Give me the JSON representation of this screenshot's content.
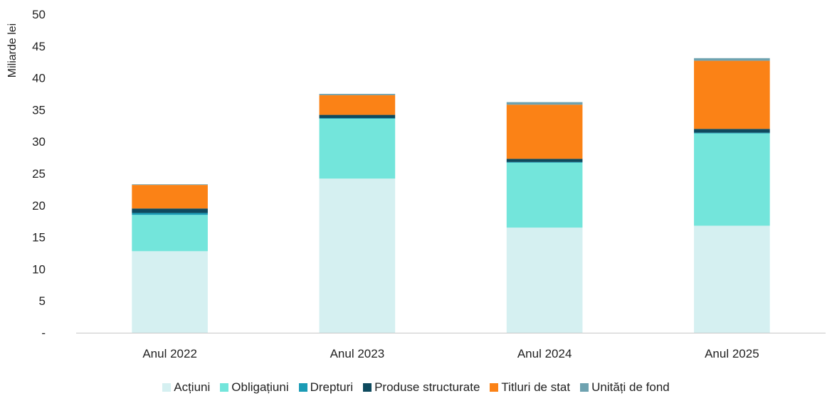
{
  "chart_data": {
    "type": "bar",
    "stacked": true,
    "ylabel": "Miliarde lei",
    "ylim": [
      0,
      50
    ],
    "y_ticks": [
      "-",
      "5",
      "10",
      "15",
      "20",
      "25",
      "30",
      "35",
      "40",
      "45",
      "50"
    ],
    "y_tick_values": [
      0,
      5,
      10,
      15,
      20,
      25,
      30,
      35,
      40,
      45,
      50
    ],
    "categories": [
      "Anul 2022",
      "Anul 2023",
      "Anul 2024",
      "Anul 2025"
    ],
    "series": [
      {
        "name": "Acțiuni",
        "color": "#d5f0f1",
        "values": [
          12.8,
          24.2,
          16.5,
          16.8
        ]
      },
      {
        "name": "Obligațiuni",
        "color": "#73e5db",
        "values": [
          5.7,
          9.4,
          10.2,
          14.5
        ]
      },
      {
        "name": "Drepturi",
        "color": "#1a9bb5",
        "values": [
          0.3,
          0.1,
          0.1,
          0.1
        ]
      },
      {
        "name": "Produse structurate",
        "color": "#0e4a5e",
        "values": [
          0.7,
          0.5,
          0.5,
          0.6
        ]
      },
      {
        "name": "Titluri de stat",
        "color": "#fb8216",
        "values": [
          3.7,
          3.1,
          8.5,
          10.7
        ]
      },
      {
        "name": "Unități de fond",
        "color": "#6ea2b0",
        "values": [
          0.1,
          0.2,
          0.4,
          0.4
        ]
      }
    ],
    "legend_position": "bottom",
    "grid": false
  }
}
